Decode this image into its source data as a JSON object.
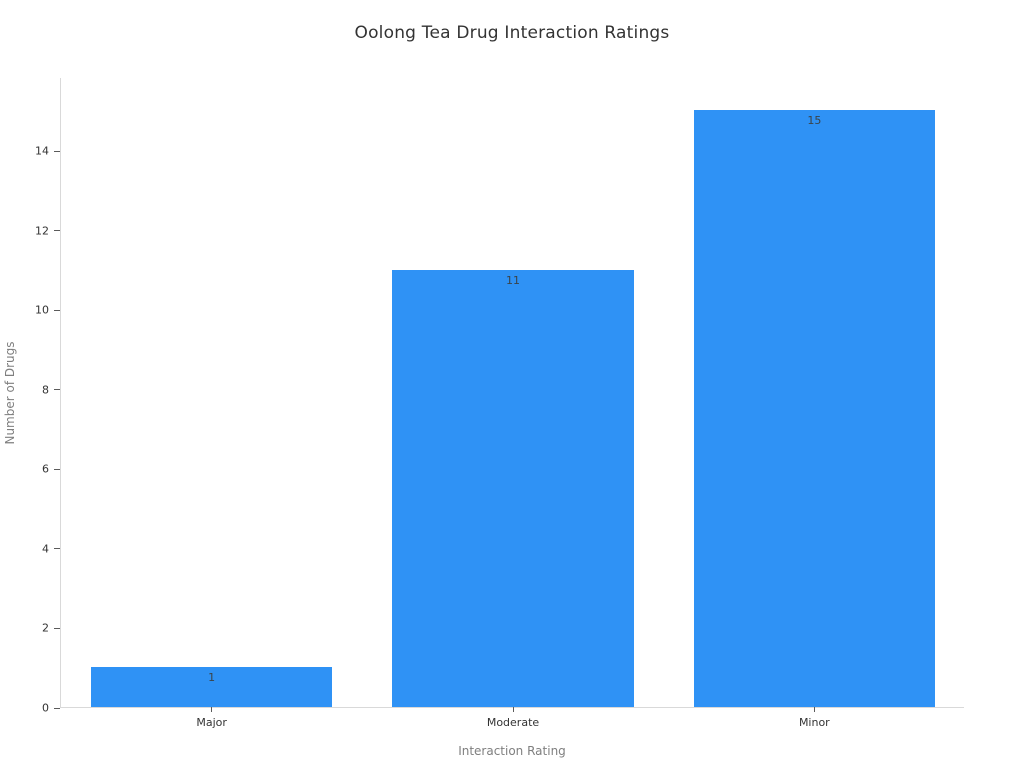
{
  "title": "Oolong Tea Drug Interaction Ratings",
  "chart_data": {
    "type": "bar",
    "title": "Oolong Tea Drug Interaction Ratings",
    "categories": [
      "Major",
      "Moderate",
      "Minor"
    ],
    "values": [
      1,
      11,
      15
    ],
    "value_labels": [
      "1",
      "11",
      "15"
    ],
    "xlabel": "Interaction Rating",
    "ylabel": "Number of Drugs",
    "ylim": [
      0,
      15.84
    ],
    "yticks": [
      0,
      2,
      4,
      6,
      8,
      10,
      12,
      14
    ],
    "grid": false,
    "legend": null,
    "bar_width_fraction": 0.8
  },
  "colors": {
    "bar": "#2F92F5",
    "title_text": "#333333",
    "tick_text": "#333333",
    "value_label_text": "#3b4348",
    "axis_title_text": "#7f7f7f",
    "axis_line": "#d9d9d9",
    "background": "#ffffff"
  }
}
